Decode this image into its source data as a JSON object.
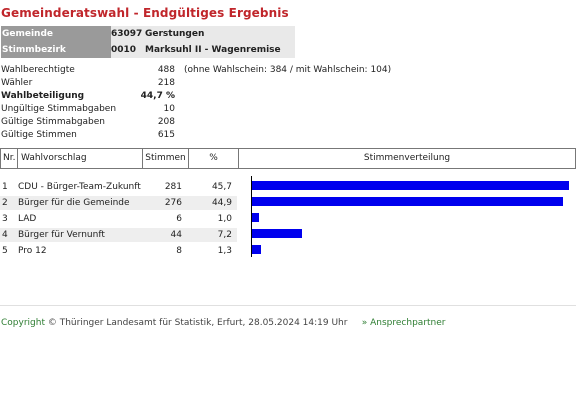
{
  "page": {
    "title": "Gemeinderatswahl - Endgültiges Ergebnis"
  },
  "header": {
    "gemeinde_label": "Gemeinde",
    "gemeinde_code": "63097",
    "gemeinde_name": "Gerstungen",
    "stimmbezirk_label": "Stimmbezirk",
    "stimmbezirk_code": "0010",
    "stimmbezirk_name": "Marksuhl II - Wagenremise"
  },
  "stats": [
    {
      "label": "Wahlberechtigte",
      "value": "488",
      "note": "(ohne Wahlschein: 384 / mit Wahlschein: 104)"
    },
    {
      "label": "Wähler",
      "value": "218"
    },
    {
      "label": "Wahlbeteiligung",
      "value": "44,7 %"
    },
    {
      "label": "Ungültige Stimmabgaben",
      "value": "10"
    },
    {
      "label": "Gültige Stimmabgaben",
      "value": "208"
    },
    {
      "label": "Gültige Stimmen",
      "value": "615"
    }
  ],
  "table": {
    "headers": {
      "nr": "Nr.",
      "wahlvorschlag": "Wahlvorschlag",
      "stimmen": "Stimmen",
      "prozent": "%",
      "verteilung": "Stimmenverteilung"
    },
    "rows": [
      {
        "nr": "1",
        "name": "CDU - Bürger-Team-Zukunft",
        "stimmen": "281",
        "prozent": "45,7"
      },
      {
        "nr": "2",
        "name": "Bürger für die Gemeinde",
        "stimmen": "276",
        "prozent": "44,9"
      },
      {
        "nr": "3",
        "name": "LAD",
        "stimmen": "6",
        "prozent": "1,0"
      },
      {
        "nr": "4",
        "name": "Bürger für Vernunft",
        "stimmen": "44",
        "prozent": "7,2"
      },
      {
        "nr": "5",
        "name": "Pro 12",
        "stimmen": "8",
        "prozent": "1,3"
      }
    ]
  },
  "colors": {
    "title": "#c0262b",
    "bar": "#0000ee",
    "link": "#2e7d32"
  },
  "chart_data": {
    "type": "bar",
    "categories": [
      "CDU - Bürger-Team-Zukunft",
      "Bürger für die Gemeinde",
      "LAD",
      "Bürger für Vernunft",
      "Pro 12"
    ],
    "values": [
      45.7,
      44.9,
      1.0,
      7.2,
      1.3
    ],
    "title": "Stimmenverteilung"
  },
  "footer": {
    "copyright": "Copyright",
    "text": "© Thüringer Landesamt für Statistik, Erfurt, 28.05.2024 14:19 Uhr",
    "link": "» Ansprechpartner"
  }
}
